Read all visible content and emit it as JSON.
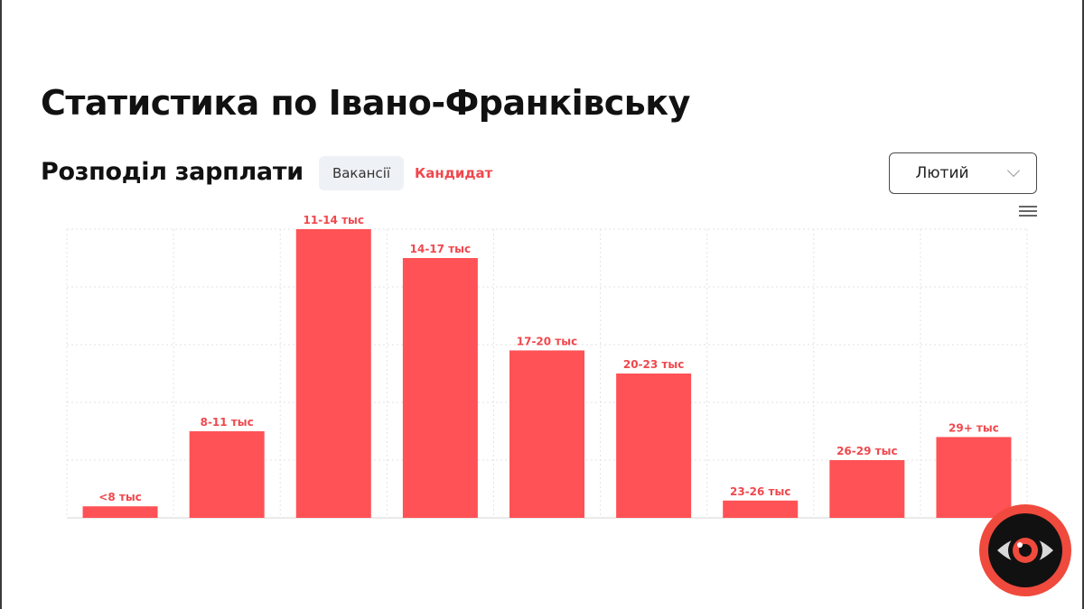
{
  "page": {
    "title": "Статистика по Івано-Франківську"
  },
  "section": {
    "title": "Розподіл зарплати",
    "tabs": [
      {
        "label": "Вакансії",
        "active": false
      },
      {
        "label": "Кандидат",
        "active": true
      }
    ]
  },
  "month_select": {
    "value": "Лютий"
  },
  "colors": {
    "bar": "#ff5256",
    "accent": "#f0484d",
    "grid": "#e3e3e3"
  },
  "icons": {
    "menu": "hamburger-menu-icon",
    "logo": "eye-logo-icon"
  },
  "chart_data": {
    "type": "bar",
    "categories": [
      "<8 тыс",
      "8-11 тыс",
      "11-14 тыс",
      "14-17 тыс",
      "17-20 тыс",
      "20-23 тыс",
      "23-26 тыс",
      "26-29 тыс",
      "29+ тыс"
    ],
    "values": [
      4,
      30,
      100,
      90,
      58,
      50,
      6,
      20,
      28
    ],
    "ylim": [
      0,
      100
    ],
    "grid": true,
    "xlabel": "",
    "ylabel": ""
  }
}
